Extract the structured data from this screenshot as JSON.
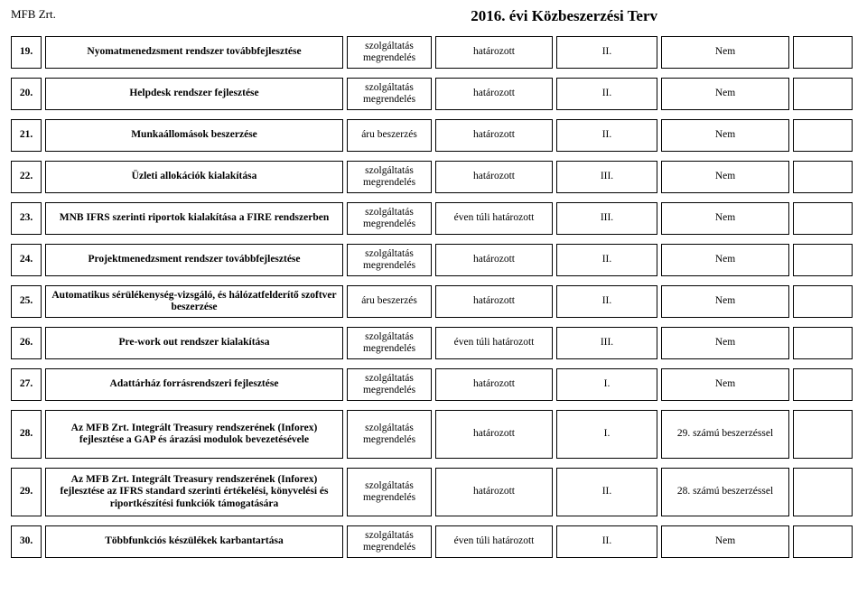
{
  "header": {
    "company": "MFB Zrt.",
    "title": "2016. évi Közbeszerzési Terv"
  },
  "type_labels": {
    "szolg": "szolgáltatás",
    "megrend": "megrendelés",
    "aru": "áru beszerzés"
  },
  "rows": [
    {
      "num": "19.",
      "desc": "Nyomatmenedzsment rendszer továbbfejlesztése",
      "type": "szolg",
      "term": "határozott",
      "cat": "II.",
      "res": "Nem",
      "tall": false
    },
    {
      "num": "20.",
      "desc": "Helpdesk rendszer fejlesztése",
      "type": "szolg",
      "term": "határozott",
      "cat": "II.",
      "res": "Nem",
      "tall": false
    },
    {
      "num": "21.",
      "desc": "Munkaállomások beszerzése",
      "type": "aru",
      "term": "határozott",
      "cat": "II.",
      "res": "Nem",
      "tall": false
    },
    {
      "num": "22.",
      "desc": "Üzleti allokációk kialakítása",
      "type": "szolg",
      "term": "határozott",
      "cat": "III.",
      "res": "Nem",
      "tall": false
    },
    {
      "num": "23.",
      "desc": "MNB IFRS szerinti riportok kialakítása a FIRE rendszerben",
      "type": "szolg",
      "term": "éven túli határozott",
      "cat": "III.",
      "res": "Nem",
      "tall": false
    },
    {
      "num": "24.",
      "desc": "Projektmenedzsment rendszer továbbfejlesztése",
      "type": "szolg",
      "term": "határozott",
      "cat": "II.",
      "res": "Nem",
      "tall": false
    },
    {
      "num": "25.",
      "desc": "Automatikus sérülékenység-vizsgáló, és hálózatfelderítő szoftver beszerzése",
      "type": "aru",
      "term": "határozott",
      "cat": "II.",
      "res": "Nem",
      "tall": false
    },
    {
      "num": "26.",
      "desc": "Pre-work out rendszer kialakítása",
      "type": "szolg",
      "term": "éven túli határozott",
      "cat": "III.",
      "res": "Nem",
      "tall": false
    },
    {
      "num": "27.",
      "desc": "Adattárház forrásrendszeri fejlesztése",
      "type": "szolg",
      "term": "határozott",
      "cat": "I.",
      "res": "Nem",
      "tall": false
    },
    {
      "num": "28.",
      "desc": "Az MFB Zrt. Integrált Treasury rendszerének (Inforex) fejlesztése a GAP és árazási modulok bevezetésévele",
      "type": "szolg",
      "term": "határozott",
      "cat": "I.",
      "res": "29. számú beszerzéssel",
      "tall": true
    },
    {
      "num": "29.",
      "desc": "Az MFB Zrt. Integrált Treasury rendszerének (Inforex) fejlesztése az IFRS standard szerinti értékelési, könyvelési és riportkészítési funkciók támogatására",
      "type": "szolg",
      "term": "határozott",
      "cat": "II.",
      "res": "28. számú beszerzéssel",
      "tall": true
    },
    {
      "num": "30.",
      "desc": "Többfunkciós készülékek karbantartása",
      "type": "szolg",
      "term": "éven túli határozott",
      "cat": "II.",
      "res": "Nem",
      "tall": false
    }
  ]
}
